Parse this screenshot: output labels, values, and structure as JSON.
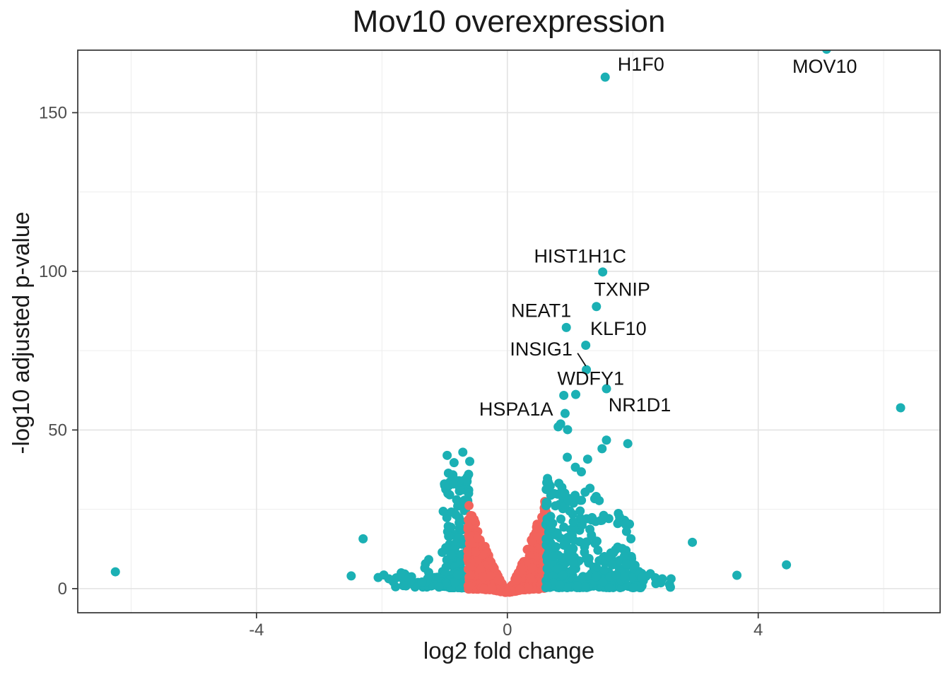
{
  "page": {
    "background": "#ffffff"
  },
  "chart_data": {
    "type": "scatter",
    "subtype": "volcano-plot",
    "title": "Mov10 overexpression",
    "xlabel": "log2 fold change",
    "ylabel": "-log10 adjusted p-value",
    "xlim": [
      -6.85,
      6.9
    ],
    "ylim": [
      -7.6,
      169.7
    ],
    "x_major_ticks": [
      -4,
      0,
      4
    ],
    "x_minor_ticks": [
      -6,
      -2,
      2,
      6
    ],
    "y_major_ticks": [
      0,
      50,
      100,
      150
    ],
    "y_minor_ticks": [
      25,
      75,
      125
    ],
    "grid": true,
    "legend": "none",
    "colors": {
      "significant": "#1BB0B4",
      "nonsignificant": "#F2635C",
      "grid_major": "#E3E3E3",
      "grid_minor": "#EDEDED",
      "panel_border": "#333333",
      "tick_mark": "#333333",
      "tick_label": "#4d4d4d",
      "gene_label": "#111111"
    },
    "point_radius_px": 6.5,
    "labeled_genes": [
      {
        "name": "H1F0",
        "point": [
          1.56,
          161.2
        ],
        "label_at": [
          2.13,
          165.3
        ]
      },
      {
        "name": "MOV10",
        "point": [
          5.09,
          170.0
        ],
        "label_at": [
          5.06,
          164.6
        ]
      },
      {
        "name": "HIST1H1C",
        "point": [
          1.52,
          99.8
        ],
        "label_at": [
          1.16,
          104.8
        ]
      },
      {
        "name": "TXNIP",
        "point": [
          1.42,
          88.9
        ],
        "label_at": [
          1.83,
          94.3
        ]
      },
      {
        "name": "NEAT1",
        "point": [
          0.94,
          82.3
        ],
        "label_at": [
          0.54,
          87.6
        ]
      },
      {
        "name": "KLF10",
        "point": [
          1.25,
          76.7
        ],
        "label_at": [
          1.77,
          81.9
        ]
      },
      {
        "name": "INSIG1",
        "point": [
          1.26,
          69.0
        ],
        "label_at": [
          0.54,
          75.5
        ],
        "leader": [
          [
            1.12,
            74.2
          ],
          [
            1.25,
            70.2
          ]
        ]
      },
      {
        "name": "WDFY1",
        "point": [
          1.58,
          63.0
        ],
        "label_at": [
          1.33,
          66.2
        ]
      },
      {
        "name": "HSPA1A",
        "point": [
          0.9,
          60.9
        ],
        "label_at": [
          0.14,
          56.6
        ]
      },
      {
        "name": "NR1D1",
        "point": [
          1.09,
          61.2
        ],
        "label_at": [
          2.11,
          57.9
        ]
      }
    ],
    "extra_points_significant": [
      [
        6.27,
        57.0
      ],
      [
        -6.25,
        5.3
      ],
      [
        -2.49,
        4.0
      ],
      [
        -2.3,
        15.7
      ],
      [
        -2.06,
        3.5
      ],
      [
        -1.89,
        3.1
      ],
      [
        -1.97,
        4.3
      ],
      [
        -1.82,
        2.2
      ],
      [
        2.95,
        14.6
      ],
      [
        3.66,
        4.2
      ],
      [
        4.45,
        7.5
      ],
      [
        2.28,
        4.7
      ],
      [
        2.47,
        3.1
      ],
      [
        2.14,
        3.5
      ],
      [
        2.61,
        3.1
      ],
      [
        1.58,
        46.8
      ],
      [
        1.92,
        45.7
      ],
      [
        1.51,
        44.1
      ],
      [
        1.28,
        40.8
      ],
      [
        1.18,
        36.8
      ],
      [
        1.24,
        30.4
      ],
      [
        1.77,
        23.7
      ],
      [
        1.79,
        22.6
      ],
      [
        1.35,
        22.4
      ],
      [
        1.9,
        18.0
      ],
      [
        1.97,
        15.7
      ],
      [
        -0.96,
        42.0
      ],
      [
        -0.71,
        43.0
      ],
      [
        -0.85,
        39.7
      ],
      [
        -0.94,
        36.4
      ],
      [
        -0.6,
        40.1
      ],
      [
        -0.65,
        34.6
      ],
      [
        0.92,
        55.2
      ],
      [
        0.85,
        51.9
      ],
      [
        0.96,
        50.1
      ],
      [
        0.81,
        51.0
      ]
    ],
    "clusters": [
      {
        "name": "teal-left-columns",
        "color": "significant",
        "n": 190,
        "x0": -0.615,
        "x1": -1.04,
        "xbias": 1.2,
        "e0": 41,
        "e1": 33,
        "epow": 1.0,
        "ypow": 2.2,
        "ymin": 0.3,
        "dip": 0
      },
      {
        "name": "teal-left-bottom",
        "color": "significant",
        "n": 70,
        "x0": -0.62,
        "x1": -1.33,
        "xbias": 1.3,
        "e0": 6,
        "e1": 3,
        "epow": 1.0,
        "ypow": 1.2,
        "ymin": 0.2,
        "dip": 0
      },
      {
        "name": "teal-left-clump",
        "color": "significant",
        "n": 16,
        "x0": -1.25,
        "x1": -1.68,
        "xbias": 1.0,
        "e0": 10,
        "e1": 5,
        "epow": 1.0,
        "ypow": 1.3,
        "ymin": 0.5,
        "dip": 0
      },
      {
        "name": "teal-left-sparse",
        "color": "significant",
        "n": 10,
        "x0": -1.35,
        "x1": -1.95,
        "xbias": 1.0,
        "e0": 8,
        "e1": 3,
        "epow": 1.0,
        "ypow": 1.6,
        "ymin": 0.4,
        "dip": 0
      },
      {
        "name": "red-wedge-left",
        "color": "nonsignificant",
        "n": 300,
        "x0": -0.02,
        "x1": -0.63,
        "xbias": 0.8,
        "e0": 1.0,
        "e1": 28,
        "epow": 1.3,
        "ypow": 1.35,
        "ymin": -0.2,
        "dip": 1.0
      },
      {
        "name": "red-wedge-right",
        "color": "nonsignificant",
        "n": 300,
        "x0": 0.02,
        "x1": 0.63,
        "xbias": 0.8,
        "e0": 1.0,
        "e1": 30,
        "epow": 1.3,
        "ypow": 1.35,
        "ymin": -0.2,
        "dip": 1.0
      },
      {
        "name": "red-bottom-strip",
        "color": "nonsignificant",
        "n": 55,
        "x0": -0.45,
        "x1": 0.45,
        "xbias": 1.0,
        "e0": 0.6,
        "e1": 0.6,
        "epow": 1.0,
        "ypow": 1.0,
        "ymin": -0.3,
        "dip": 1.0
      },
      {
        "name": "teal-right-main",
        "color": "significant",
        "n": 360,
        "x0": 0.615,
        "x1": 2.15,
        "xbias": 1.55,
        "e0": 36,
        "e1": 7,
        "epow": 1.1,
        "ypow": 2.2,
        "ymin": 0.3,
        "dip": 0
      },
      {
        "name": "teal-right-high",
        "color": "significant",
        "n": 26,
        "x0": 0.78,
        "x1": 2.0,
        "xbias": 1.0,
        "e0": 46,
        "e1": 20,
        "epow": 1.0,
        "ypow": 1.0,
        "ymin": 20,
        "dip": 0
      },
      {
        "name": "teal-right-far",
        "color": "significant",
        "n": 8,
        "x0": 2.15,
        "x1": 2.6,
        "xbias": 1.0,
        "e0": 5,
        "e1": 3,
        "epow": 1.0,
        "ypow": 1.4,
        "ymin": 0.4,
        "dip": 0
      }
    ],
    "seed": 11
  }
}
